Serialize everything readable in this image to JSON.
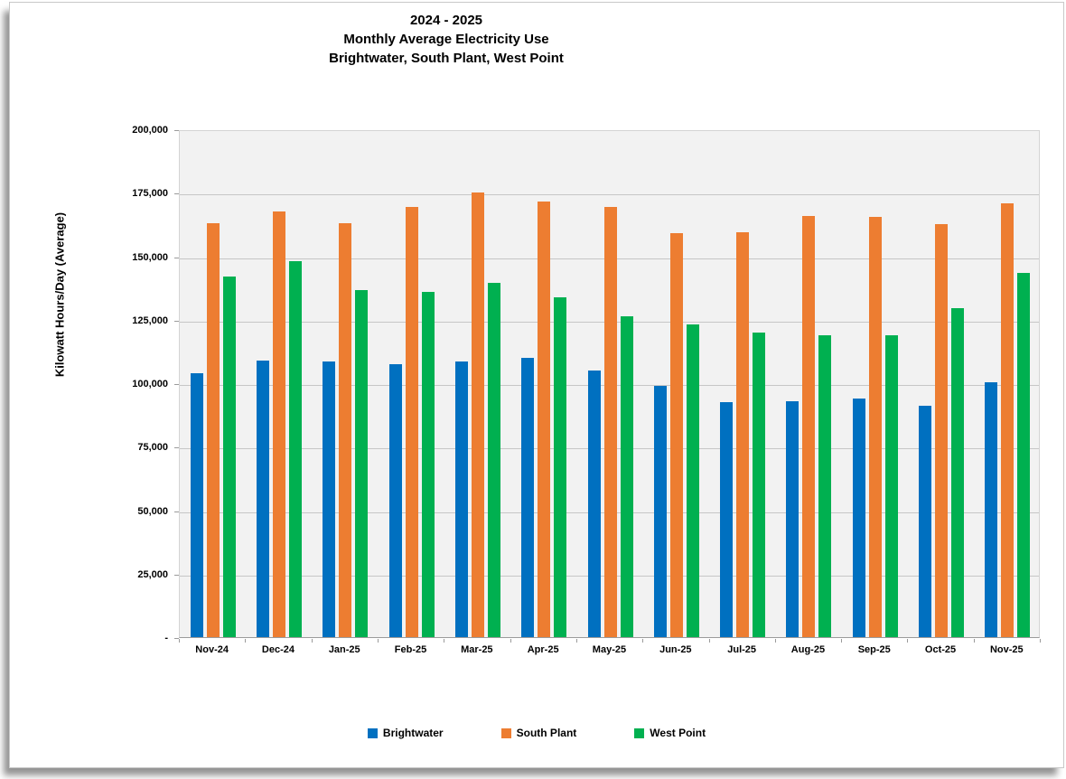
{
  "title": {
    "line1": "2024 - 2025",
    "line2": "Monthly Average Electricity Use",
    "line3": "Brightwater, South Plant, West Point"
  },
  "y_axis": {
    "label": "Kilowatt Hours/Day (Average)",
    "tick_labels": [
      "200,000",
      "175,000",
      "150,000",
      "125,000",
      "100,000",
      "75,000",
      "50,000",
      "25,000",
      "-"
    ],
    "max": 200000,
    "step": 25000
  },
  "chart_data": {
    "type": "bar",
    "title": "2024 - 2025 Monthly Average Electricity Use - Brightwater, South Plant, West Point",
    "categories": [
      "Nov-24",
      "Dec-24",
      "Jan-25",
      "Feb-25",
      "Mar-25",
      "Apr-25",
      "May-25",
      "Jun-25",
      "Jul-25",
      "Aug-25",
      "Sep-25",
      "Oct-25",
      "Nov-25"
    ],
    "series": [
      {
        "name": "Brightwater",
        "color": "#0070C0",
        "values": [
          104000,
          109000,
          108500,
          107500,
          108500,
          110000,
          105000,
          99000,
          92500,
          93000,
          94000,
          91000,
          100500
        ]
      },
      {
        "name": "South Plant",
        "color": "#ED7D31",
        "values": [
          163000,
          167500,
          163000,
          169500,
          175000,
          171500,
          169500,
          159000,
          159500,
          166000,
          165500,
          162500,
          171000
        ]
      },
      {
        "name": "West Point",
        "color": "#00B050",
        "values": [
          142000,
          148000,
          136500,
          136000,
          139500,
          134000,
          126500,
          123000,
          120000,
          119000,
          119000,
          129500,
          143500
        ]
      }
    ],
    "xlabel": "",
    "ylabel": "Kilowatt Hours/Day (Average)",
    "ylim": [
      0,
      200000
    ],
    "grid": true,
    "legend_position": "bottom",
    "plot_background": "#f2f2f2"
  },
  "legend": {
    "items": [
      {
        "label": "Brightwater",
        "color": "#0070C0"
      },
      {
        "label": "South Plant",
        "color": "#ED7D31"
      },
      {
        "label": "West Point",
        "color": "#00B050"
      }
    ]
  }
}
